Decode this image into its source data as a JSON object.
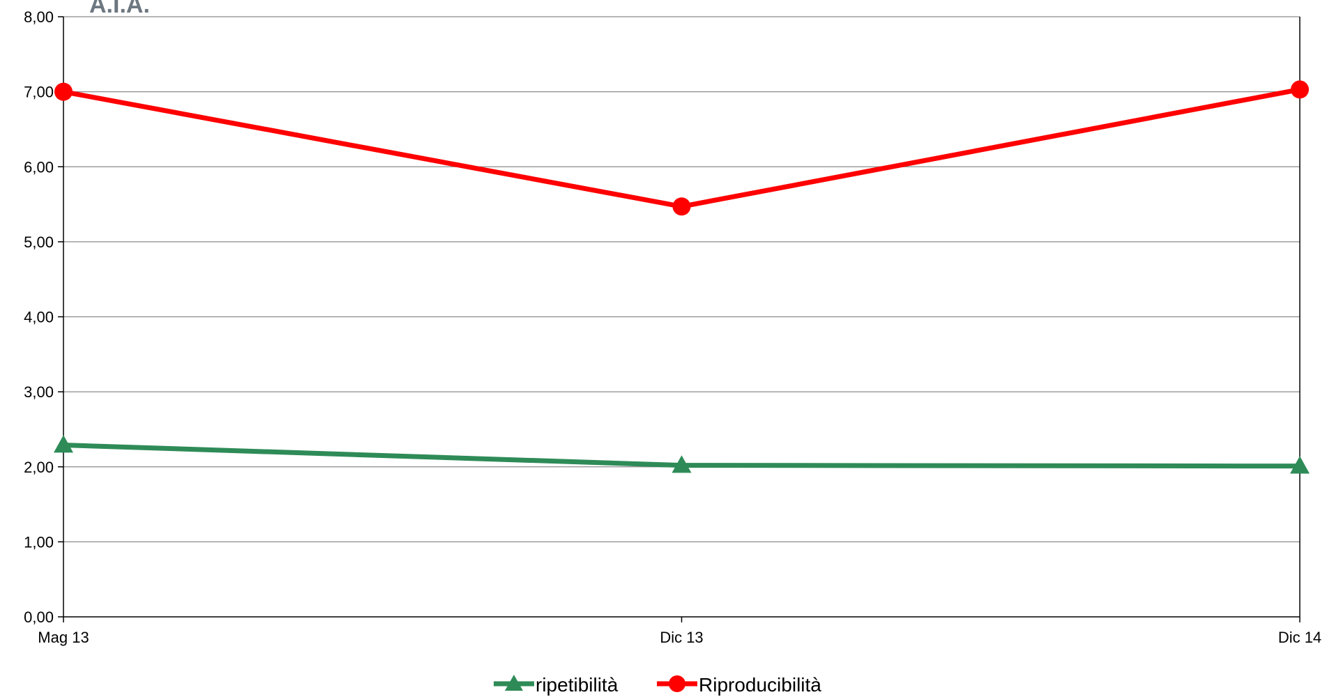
{
  "chart_data": {
    "type": "line",
    "title": "A.I.A.",
    "categories": [
      "Mag 13",
      "Dic 13",
      "Dic 14"
    ],
    "ylim": [
      0,
      8
    ],
    "yticks": [
      "0,00",
      "1,00",
      "2,00",
      "3,00",
      "4,00",
      "5,00",
      "6,00",
      "7,00",
      "8,00"
    ],
    "grid": true,
    "legend_position": "bottom",
    "series": [
      {
        "name": "ripetibilità",
        "values": [
          2.29,
          2.02,
          2.01
        ],
        "color": "#2e8b57",
        "marker": "triangle"
      },
      {
        "name": "Riproducibilità",
        "values": [
          7.0,
          5.47,
          7.03
        ],
        "color": "#ff0000",
        "marker": "circle"
      }
    ]
  }
}
